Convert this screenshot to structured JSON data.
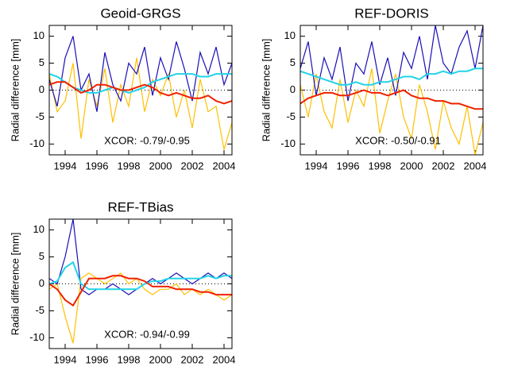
{
  "chart_data": [
    {
      "type": "line",
      "title": "Geoid-GRGS",
      "y_label": "Radial difference [mm]",
      "annotation": "XCOR: -0.79/-0.95",
      "x": [
        1993.0,
        1993.5,
        1994.0,
        1994.5,
        1995.0,
        1995.5,
        1996.0,
        1996.5,
        1997.0,
        1997.5,
        1998.0,
        1998.5,
        1999.0,
        1999.5,
        2000.0,
        2000.5,
        2001.0,
        2001.5,
        2002.0,
        2002.5,
        2003.0,
        2003.5,
        2004.0,
        2004.5
      ],
      "xlim": [
        1993,
        2004.5
      ],
      "xticks": [
        1994,
        1996,
        1998,
        2000,
        2002,
        2004
      ],
      "ylim": [
        -12,
        12
      ],
      "yticks": [
        -10,
        -5,
        0,
        5,
        10
      ],
      "series": [
        {
          "color": "#ffbf00",
          "values": [
            3,
            -4,
            -2,
            5,
            -9,
            2,
            -3,
            4,
            -6,
            1,
            -3,
            6,
            -4,
            2,
            -1,
            3,
            -5,
            0,
            -7,
            2,
            -4,
            -3,
            -11,
            -6
          ]
        },
        {
          "color": "#1a0fb5",
          "values": [
            2,
            -3,
            6,
            10,
            0,
            3,
            -4,
            7,
            1,
            -2,
            5,
            3,
            8,
            -1,
            6,
            2,
            9,
            4,
            -2,
            7,
            3,
            8,
            1,
            5
          ]
        },
        {
          "color": "#22d3e8",
          "values": [
            3,
            2.5,
            1.5,
            0.5,
            0,
            -0.5,
            -0.5,
            0,
            0.5,
            0,
            -0.5,
            0,
            0.5,
            1.5,
            2,
            2.5,
            3,
            3,
            3,
            2.5,
            2.5,
            3,
            3,
            3
          ]
        },
        {
          "color": "#ee2200",
          "values": [
            1,
            1.5,
            1.5,
            0.5,
            -0.5,
            0,
            1,
            1,
            0.5,
            0,
            0,
            0.5,
            1,
            0.5,
            -0.5,
            -1,
            -0.5,
            -1,
            -1.5,
            -1.5,
            -1,
            -2,
            -2.5,
            -2
          ]
        }
      ]
    },
    {
      "type": "line",
      "title": "REF-DORIS",
      "y_label": "Radial difference [mm]",
      "annotation": "XCOR: -0.50/-0.91",
      "x": [
        1993.0,
        1993.5,
        1994.0,
        1994.5,
        1995.0,
        1995.5,
        1996.0,
        1996.5,
        1997.0,
        1997.5,
        1998.0,
        1998.5,
        1999.0,
        1999.5,
        2000.0,
        2000.5,
        2001.0,
        2001.5,
        2002.0,
        2002.5,
        2003.0,
        2003.5,
        2004.0,
        2004.5
      ],
      "xlim": [
        1993,
        2004.5
      ],
      "xticks": [
        1994,
        1996,
        1998,
        2000,
        2002,
        2004
      ],
      "ylim": [
        -12,
        12
      ],
      "yticks": [
        -10,
        -5,
        0,
        5,
        10
      ],
      "series": [
        {
          "color": "#ffbf00",
          "values": [
            1,
            -5,
            3,
            -4,
            -7,
            2,
            -6,
            0,
            -3,
            4,
            -8,
            -2,
            3,
            -5,
            -9,
            1,
            -4,
            -11,
            -2,
            -7,
            -10,
            -3,
            -12,
            -6
          ]
        },
        {
          "color": "#1a0fb5",
          "values": [
            4,
            9,
            -1,
            6,
            2,
            8,
            -2,
            5,
            3,
            9,
            1,
            6,
            -1,
            7,
            4,
            10,
            2,
            12,
            5,
            3,
            8,
            11,
            4,
            12
          ]
        },
        {
          "color": "#22d3e8",
          "values": [
            3.5,
            3,
            2.5,
            2,
            1.5,
            1,
            1,
            1.5,
            1,
            1,
            1.5,
            1.5,
            2,
            2.5,
            2.5,
            2,
            3,
            3,
            3.5,
            3,
            3.5,
            3.5,
            4,
            4
          ]
        },
        {
          "color": "#ee2200",
          "values": [
            -2.5,
            -1.5,
            -1,
            -0.5,
            -0.5,
            -1,
            -1,
            -0.5,
            0,
            -0.5,
            -0.5,
            -1,
            -0.5,
            0,
            -1,
            -1.5,
            -1.5,
            -2,
            -2,
            -2.5,
            -2.5,
            -3,
            -3.5,
            -3.5
          ]
        }
      ]
    },
    {
      "type": "line",
      "title": "REF-TBias",
      "y_label": "Radial difference [mm]",
      "annotation": "XCOR: -0.94/-0.99",
      "x": [
        1993.0,
        1993.5,
        1994.0,
        1994.5,
        1995.0,
        1995.5,
        1996.0,
        1996.5,
        1997.0,
        1997.5,
        1998.0,
        1998.5,
        1999.0,
        1999.5,
        2000.0,
        2000.5,
        2001.0,
        2001.5,
        2002.0,
        2002.5,
        2003.0,
        2003.5,
        2004.0,
        2004.5
      ],
      "xlim": [
        1993,
        2004.5
      ],
      "xticks": [
        1994,
        1996,
        1998,
        2000,
        2002,
        2004
      ],
      "ylim": [
        -12,
        12
      ],
      "yticks": [
        -10,
        -5,
        0,
        5,
        10
      ],
      "series": [
        {
          "color": "#ffbf00",
          "values": [
            -1,
            0,
            -6,
            -11,
            1,
            2,
            1,
            0,
            1,
            2,
            0,
            1,
            -1,
            -2,
            -1,
            -1,
            0,
            -2,
            -1,
            -2,
            -1,
            -2,
            -3,
            -2
          ]
        },
        {
          "color": "#1a0fb5",
          "values": [
            1,
            0,
            5,
            12,
            -1,
            -2,
            -1,
            -1,
            0,
            -1,
            -2,
            -1,
            0,
            1,
            0,
            1,
            2,
            1,
            0,
            1,
            2,
            1,
            2,
            1
          ]
        },
        {
          "color": "#22d3e8",
          "values": [
            0,
            0.5,
            3,
            4,
            0,
            -1,
            -1,
            -1,
            -1,
            -1,
            -1,
            -1,
            0,
            0.5,
            0.5,
            1,
            1,
            1,
            1,
            1,
            1.5,
            1,
            1.5,
            1.5
          ]
        },
        {
          "color": "#ee2200",
          "values": [
            0,
            -1,
            -3,
            -4,
            -1.5,
            1,
            1,
            1,
            1.5,
            1.5,
            1,
            1,
            0.5,
            -0.5,
            -0.5,
            -0.5,
            -1,
            -1,
            -1,
            -1.5,
            -1.5,
            -2,
            -2,
            -2
          ]
        }
      ]
    }
  ]
}
